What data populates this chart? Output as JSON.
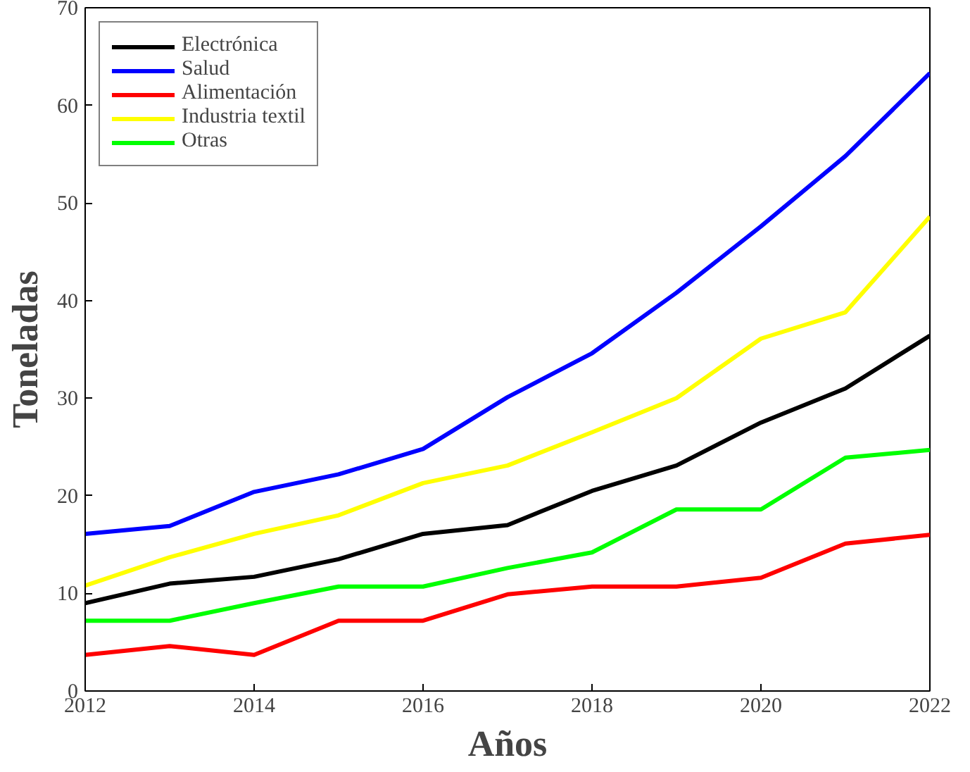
{
  "chart_data": {
    "type": "line",
    "xlabel": "Años",
    "ylabel": "Toneladas",
    "x": [
      2012,
      2013,
      2014,
      2015,
      2016,
      2017,
      2018,
      2019,
      2020,
      2021,
      2022
    ],
    "xlim": [
      2012,
      2022
    ],
    "xticks": [
      2012,
      2014,
      2016,
      2018,
      2020,
      2022
    ],
    "ylim": [
      0,
      70
    ],
    "yticks": [
      0,
      10,
      20,
      30,
      40,
      50,
      60,
      70
    ],
    "grid": false,
    "legend": "top left",
    "marker": "none",
    "line_style": "solid",
    "series": [
      {
        "name": "Electrónica",
        "color": "#000000",
        "values": [
          9.0,
          11.0,
          11.7,
          13.5,
          16.1,
          17.0,
          20.5,
          23.1,
          27.5,
          31.0,
          36.4
        ]
      },
      {
        "name": "Salud",
        "color": "#0000ff",
        "values": [
          16.1,
          16.9,
          20.4,
          22.2,
          24.8,
          30.1,
          34.6,
          40.8,
          47.6,
          54.8,
          63.3
        ]
      },
      {
        "name": "Alimentación",
        "color": "#ff0000",
        "values": [
          3.7,
          4.6,
          3.7,
          7.2,
          7.2,
          9.9,
          10.7,
          10.7,
          11.6,
          15.1,
          16.0
        ]
      },
      {
        "name": "Industria textil",
        "color": "#ffff00",
        "values": [
          10.8,
          13.7,
          16.1,
          18.0,
          21.3,
          23.1,
          26.5,
          30.0,
          36.1,
          38.8,
          48.6
        ]
      },
      {
        "name": "Otras",
        "color": "#00ff00",
        "values": [
          7.2,
          7.2,
          9.0,
          10.7,
          10.7,
          12.6,
          14.2,
          18.6,
          18.6,
          23.9,
          24.7
        ]
      }
    ]
  }
}
